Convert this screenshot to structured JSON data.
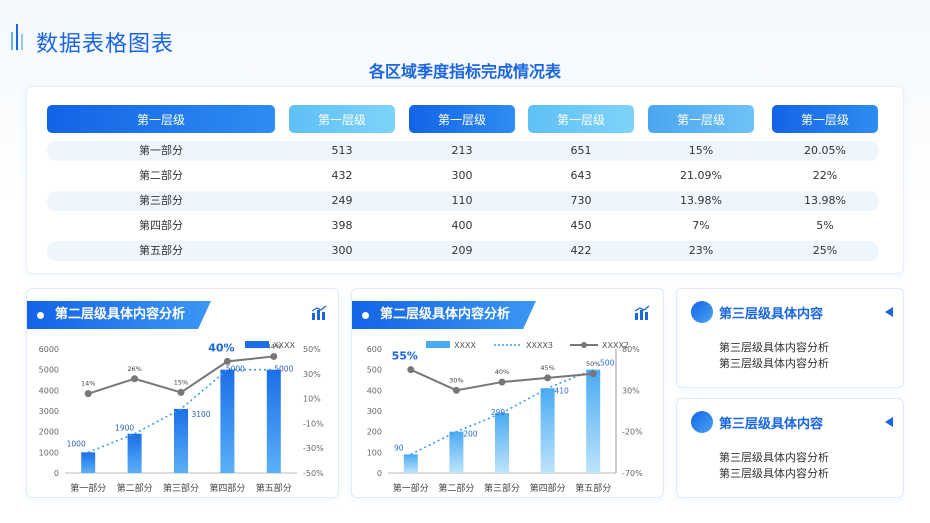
{
  "page": {
    "title": "数据表格图表"
  },
  "table": {
    "title": "各区域季度指标完成情况表",
    "headers": [
      "第一层级",
      "第一层级",
      "第一层级",
      "第一层级",
      "第一层级",
      "第一层级"
    ],
    "rows": [
      [
        "第一部分",
        "513",
        "213",
        "651",
        "15%",
        "20.05%"
      ],
      [
        "第二部分",
        "432",
        "300",
        "643",
        "21.09%",
        "22%"
      ],
      [
        "第三部分",
        "249",
        "110",
        "730",
        "13.98%",
        "13.98%"
      ],
      [
        "第四部分",
        "398",
        "400",
        "450",
        "7%",
        "5%"
      ],
      [
        "第五部分",
        "300",
        "209",
        "422",
        "23%",
        "25%"
      ]
    ]
  },
  "panels": [
    {
      "title": "第二层级具体内容分析"
    },
    {
      "title": "第二层级具体内容分析"
    }
  ],
  "info_cards": [
    {
      "title": "第三层级具体内容",
      "lines": [
        "第三层级具体内容分析",
        "第三层级具体内容分析"
      ]
    },
    {
      "title": "第三层级具体内容",
      "lines": [
        "第三层级具体内容分析",
        "第三层级具体内容分析"
      ]
    }
  ],
  "chart_data": [
    {
      "type": "bar",
      "categories": [
        "第一部分",
        "第二部分",
        "第三部分",
        "第四部分",
        "第五部分"
      ],
      "series": [
        {
          "name": "XXXX",
          "kind": "bar",
          "values": [
            1000,
            1900,
            3100,
            5000,
            5000
          ]
        },
        {
          "kind": "line",
          "values": [
            14,
            26,
            15,
            40,
            44
          ],
          "labels": [
            "14%",
            "26%",
            "15%",
            "40%",
            "44%"
          ],
          "axis": "right"
        }
      ],
      "bar_labels": [
        "1000",
        "1900",
        "3100",
        "5000",
        "5000"
      ],
      "ylim": [
        0,
        6000
      ],
      "yticks": [
        "0",
        "1000",
        "2000",
        "3000",
        "4000",
        "5000",
        "6000"
      ],
      "y2lim": [
        -50,
        50
      ],
      "y2ticks": [
        "-50%",
        "-30%",
        "-10%",
        "10%",
        "30%",
        "50%"
      ],
      "trendline": true,
      "legend": "top-right",
      "colors": {
        "bar": "#1a6fe8",
        "line": "#777777",
        "trend": "#3a9bf0"
      }
    },
    {
      "type": "bar",
      "categories": [
        "第一部分",
        "第二部分",
        "第三部分",
        "第四部分",
        "第五部分"
      ],
      "series": [
        {
          "name": "XXXX",
          "kind": "bar",
          "values": [
            90,
            200,
            290,
            410,
            500
          ]
        },
        {
          "name": "XXXX3",
          "kind": "trend"
        },
        {
          "name": "XXXX2",
          "kind": "line",
          "values": [
            55,
            30,
            40,
            45,
            50
          ],
          "labels": [
            "55%",
            "30%",
            "40%",
            "45%",
            "50%"
          ],
          "axis": "right"
        }
      ],
      "bar_labels": [
        "90",
        "200",
        "290",
        "410",
        "500"
      ],
      "ylim": [
        0,
        600
      ],
      "yticks": [
        "0",
        "100",
        "200",
        "300",
        "400",
        "500",
        "600"
      ],
      "y2lim": [
        -70,
        80
      ],
      "y2ticks": [
        "-70%",
        "-20%",
        "30%",
        "80%"
      ],
      "legend": "top",
      "colors": {
        "bar": "#4aaaf2",
        "line": "#777777",
        "trend": "#3a9bf0"
      }
    }
  ]
}
